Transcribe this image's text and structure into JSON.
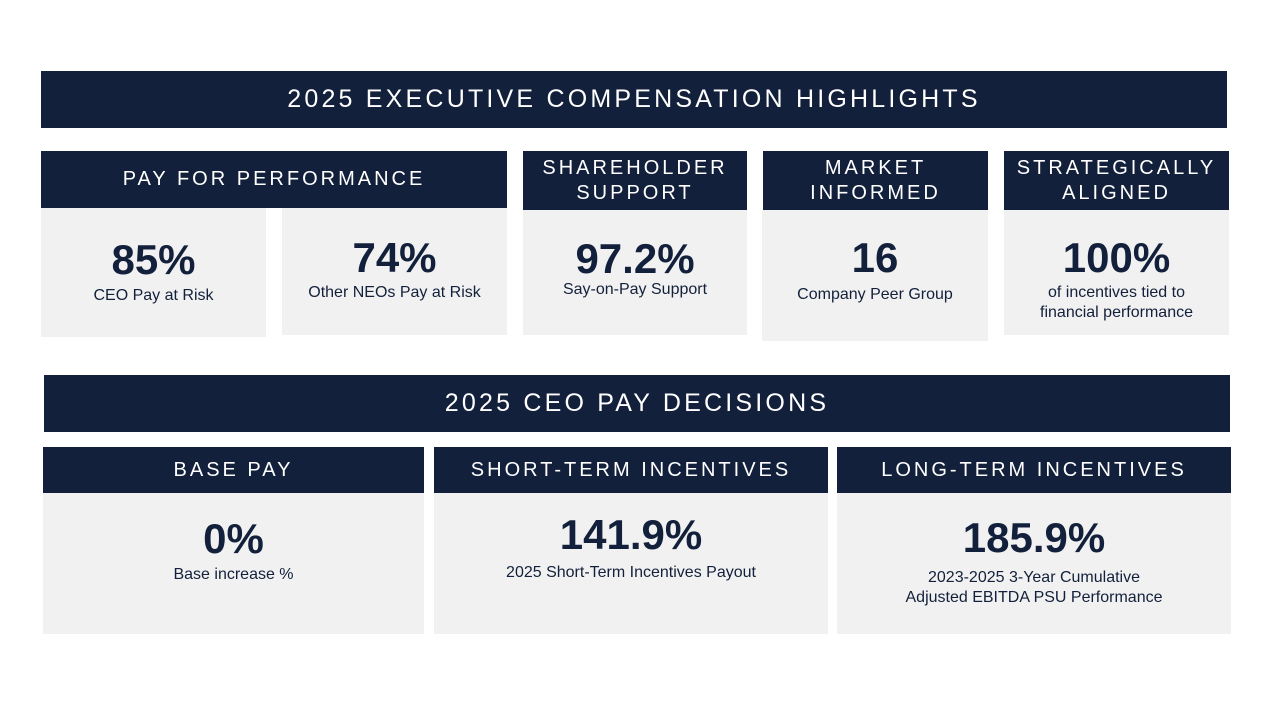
{
  "highlights": {
    "title": "2025 EXECUTIVE COMPENSATION HIGHLIGHTS",
    "pay_for_performance": {
      "header": "PAY FOR PERFORMANCE",
      "ceo": {
        "value": "85%",
        "label": "CEO Pay at Risk"
      },
      "neo": {
        "value": "74%",
        "label": "Other NEOs Pay at Risk"
      }
    },
    "shareholder_support": {
      "header_line1": "SHAREHOLDER",
      "header_line2": "SUPPORT",
      "value": "97.2%",
      "label": "Say-on-Pay Support"
    },
    "market_informed": {
      "header_line1": "MARKET",
      "header_line2": "INFORMED",
      "value": "16",
      "label": "Company Peer Group"
    },
    "strategically_aligned": {
      "header_line1": "STRATEGICALLY",
      "header_line2": "ALIGNED",
      "value": "100%",
      "label_line1": "of incentives tied to",
      "label_line2": "financial performance"
    }
  },
  "ceo_decisions": {
    "title": "2025 CEO PAY DECISIONS",
    "base_pay": {
      "header": "BASE PAY",
      "value": "0%",
      "label": "Base increase %"
    },
    "short_term": {
      "header": "SHORT-TERM INCENTIVES",
      "value": "141.9%",
      "label": "2025 Short-Term Incentives Payout"
    },
    "long_term": {
      "header": "LONG-TERM INCENTIVES",
      "value": "185.9%",
      "label_line1": "2023-2025 3-Year Cumulative",
      "label_line2": "Adjusted EBITDA PSU Performance"
    }
  },
  "colors": {
    "navy": "#13203b",
    "card": "#f1f1f1",
    "text": "#13203b"
  }
}
